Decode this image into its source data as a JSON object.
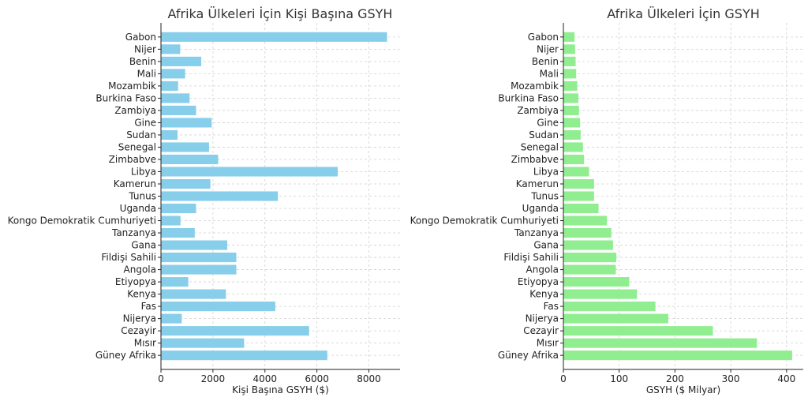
{
  "chart_data": [
    {
      "type": "bar",
      "orientation": "horizontal",
      "title": "Afrika Ülkeleri İçin Kişi Başına GSYH",
      "xlabel": "Kişi Başına GSYH ($)",
      "ylabel": "",
      "xlim": [
        0,
        9200
      ],
      "xticks": [
        0,
        2000,
        4000,
        6000,
        8000
      ],
      "grid": true,
      "bar_color": "#87CEEB",
      "categories": [
        "Güney Afrika",
        "Mısır",
        "Cezayir",
        "Nijerya",
        "Fas",
        "Kenya",
        "Etiyopya",
        "Angola",
        "Fildişi Sahili",
        "Gana",
        "Tanzanya",
        "Kongo Demokratik Cumhuriyeti",
        "Uganda",
        "Tunus",
        "Kamerun",
        "Libya",
        "Zimbabve",
        "Senegal",
        "Sudan",
        "Gine",
        "Zambiya",
        "Burkina Faso",
        "Mozambik",
        "Mali",
        "Benin",
        "Nijer",
        "Gabon"
      ],
      "values": [
        6400,
        3200,
        5700,
        800,
        4400,
        2500,
        1050,
        2900,
        2900,
        2550,
        1300,
        750,
        1350,
        4500,
        1900,
        6800,
        2200,
        1850,
        640,
        1950,
        1350,
        1100,
        660,
        930,
        1550,
        740,
        8700
      ]
    },
    {
      "type": "bar",
      "orientation": "horizontal",
      "title": "Afrika Ülkeleri İçin GSYH",
      "xlabel": "GSYH ($ Milyar)",
      "ylabel": "",
      "xlim": [
        0,
        430
      ],
      "xticks": [
        0,
        100,
        200,
        300,
        400
      ],
      "grid": true,
      "bar_color": "#90EE90",
      "categories": [
        "Güney Afrika",
        "Mısır",
        "Cezayir",
        "Nijerya",
        "Fas",
        "Kenya",
        "Etiyopya",
        "Angola",
        "Fildişi Sahili",
        "Gana",
        "Tanzanya",
        "Kongo Demokratik Cumhuriyeti",
        "Uganda",
        "Tunus",
        "Kamerun",
        "Libya",
        "Zimbabve",
        "Senegal",
        "Sudan",
        "Gine",
        "Zambiya",
        "Burkina Faso",
        "Mozambik",
        "Mali",
        "Benin",
        "Nijer",
        "Gabon"
      ],
      "values": [
        410,
        347,
        268,
        188,
        165,
        132,
        118,
        94,
        95,
        89,
        86,
        78,
        63,
        55,
        55,
        46,
        37,
        35,
        31,
        30,
        28,
        27,
        25,
        23,
        22,
        21,
        20
      ]
    }
  ]
}
